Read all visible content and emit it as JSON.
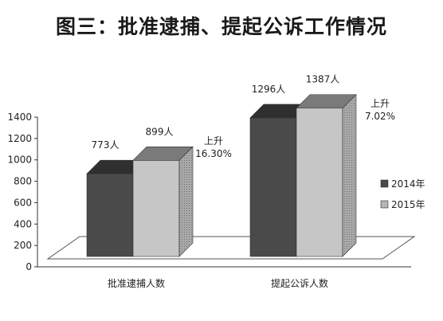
{
  "chart_data": {
    "type": "bar",
    "title": "图三：批准逮捕、提起公诉工作情况",
    "categories": [
      "批准逮捕人数",
      "提起公诉人数"
    ],
    "series": [
      {
        "name": "2014年",
        "values": [
          773,
          1296
        ],
        "labels": [
          "773人",
          "1296人"
        ],
        "color": "#4a4a4a"
      },
      {
        "name": "2015年",
        "values": [
          899,
          1387
        ],
        "labels": [
          "899人",
          "1387人"
        ],
        "color": "#c6c6c6"
      }
    ],
    "ylim": [
      0,
      1400
    ],
    "yticks": [
      0,
      200,
      400,
      600,
      800,
      1000,
      1200,
      1400
    ],
    "annotations": [
      {
        "category": "批准逮捕人数",
        "lines": [
          "上升",
          "16.30%"
        ]
      },
      {
        "category": "提起公诉人数",
        "lines": [
          "上升",
          "7.02%"
        ]
      }
    ],
    "legend_position": "right",
    "grid": false
  }
}
